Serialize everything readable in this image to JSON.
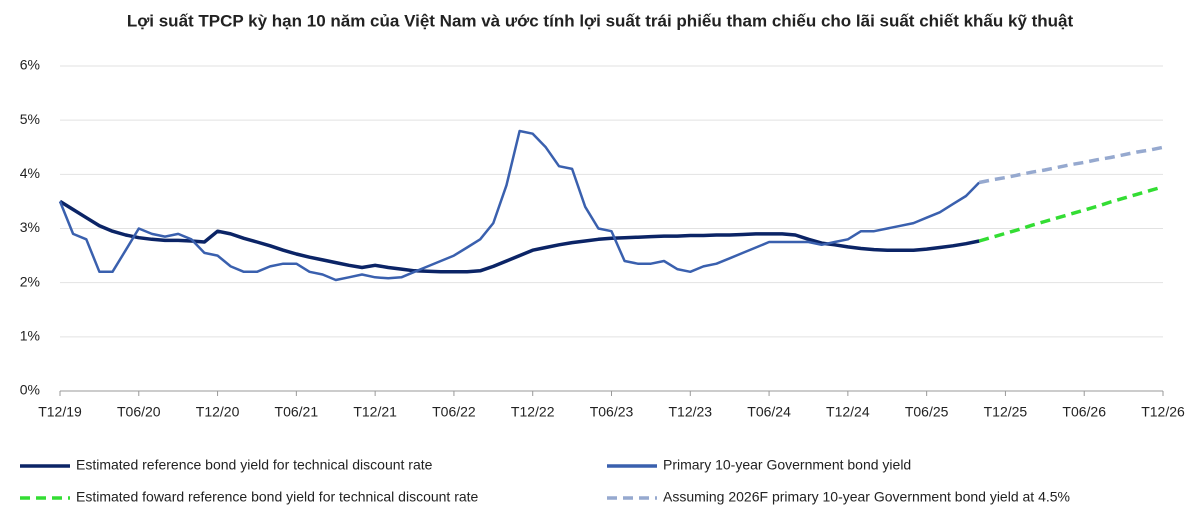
{
  "chart_data": {
    "type": "line",
    "title": "Lợi suất TPCP kỳ hạn 10 năm của Việt Nam và ước tính lợi suất trái phiếu tham chiếu cho lãi suất chiết khấu kỹ thuật",
    "categories": [
      "T12/19",
      null,
      null,
      null,
      null,
      null,
      "T06/20",
      null,
      null,
      null,
      null,
      null,
      "T12/20",
      null,
      null,
      null,
      null,
      null,
      "T06/21",
      null,
      null,
      null,
      null,
      null,
      "T12/21",
      null,
      null,
      null,
      null,
      null,
      "T06/22",
      null,
      null,
      null,
      null,
      null,
      "T12/22",
      null,
      null,
      null,
      null,
      null,
      "T06/23",
      null,
      null,
      null,
      null,
      null,
      "T12/23",
      null,
      null,
      null,
      null,
      null,
      "T06/24",
      null,
      null,
      null,
      null,
      null,
      "T12/24",
      null,
      null,
      null,
      null,
      null,
      "T06/25",
      null,
      null,
      null,
      null,
      null,
      "T12/25",
      null,
      null,
      null,
      null,
      null,
      "T06/26",
      null,
      null,
      null,
      null,
      null,
      "T12/26"
    ],
    "series": [
      {
        "name": "Estimated reference bond yield for technical discount rate",
        "color": "#0b2466",
        "dash": false,
        "values": [
          3.5,
          3.35,
          3.2,
          3.05,
          2.95,
          2.88,
          2.83,
          2.8,
          2.78,
          2.78,
          2.77,
          2.75,
          2.95,
          2.9,
          2.82,
          2.75,
          2.68,
          2.6,
          2.53,
          2.47,
          2.42,
          2.37,
          2.32,
          2.28,
          2.32,
          2.28,
          2.25,
          2.22,
          2.21,
          2.2,
          2.2,
          2.2,
          2.22,
          2.3,
          2.4,
          2.5,
          2.6,
          2.65,
          2.7,
          2.74,
          2.77,
          2.8,
          2.82,
          2.83,
          2.84,
          2.85,
          2.86,
          2.86,
          2.87,
          2.87,
          2.88,
          2.88,
          2.89,
          2.9,
          2.9,
          2.9,
          2.88,
          2.8,
          2.73,
          2.7,
          2.66,
          2.63,
          2.61,
          2.6,
          2.6,
          2.6,
          2.62,
          2.65,
          2.68,
          2.72,
          2.77,
          null,
          null,
          null,
          null,
          null,
          null,
          null,
          null,
          null,
          null,
          null,
          null,
          null,
          null
        ]
      },
      {
        "name": "Primary 10-year Government bond yield",
        "color": "#3a60ae",
        "dash": false,
        "values": [
          3.5,
          2.9,
          2.8,
          2.2,
          2.2,
          2.6,
          3.0,
          2.9,
          2.85,
          2.9,
          2.8,
          2.55,
          2.5,
          2.3,
          2.2,
          2.2,
          2.3,
          2.35,
          2.35,
          2.2,
          2.15,
          2.05,
          2.1,
          2.15,
          2.1,
          2.08,
          2.1,
          2.2,
          2.3,
          2.4,
          2.5,
          2.65,
          2.8,
          3.1,
          3.8,
          4.8,
          4.75,
          4.5,
          4.15,
          4.1,
          3.4,
          3.0,
          2.95,
          2.4,
          2.35,
          2.35,
          2.4,
          2.25,
          2.2,
          2.3,
          2.35,
          2.45,
          2.55,
          2.65,
          2.75,
          2.75,
          2.75,
          2.75,
          2.7,
          2.75,
          2.8,
          2.95,
          2.95,
          3.0,
          3.05,
          3.1,
          3.2,
          3.3,
          3.45,
          3.6,
          3.85,
          null,
          null,
          null,
          null,
          null,
          null,
          null,
          null,
          null,
          null,
          null,
          null,
          null,
          null
        ]
      },
      {
        "name": "Estimated foward reference bond yield for technical discount rate",
        "color": "#33dd33",
        "dash": true,
        "values": [
          null,
          null,
          null,
          null,
          null,
          null,
          null,
          null,
          null,
          null,
          null,
          null,
          null,
          null,
          null,
          null,
          null,
          null,
          null,
          null,
          null,
          null,
          null,
          null,
          null,
          null,
          null,
          null,
          null,
          null,
          null,
          null,
          null,
          null,
          null,
          null,
          null,
          null,
          null,
          null,
          null,
          null,
          null,
          null,
          null,
          null,
          null,
          null,
          null,
          null,
          null,
          null,
          null,
          null,
          null,
          null,
          null,
          null,
          null,
          null,
          null,
          null,
          null,
          null,
          null,
          null,
          null,
          null,
          null,
          null,
          2.77,
          2.84,
          2.91,
          2.98,
          3.06,
          3.13,
          3.2,
          3.27,
          3.34,
          3.41,
          3.49,
          3.56,
          3.63,
          3.7,
          3.77
        ]
      },
      {
        "name": "Assuming 2026F primary 10-year Government bond yield at 4.5%",
        "color": "#96a9cf",
        "dash": true,
        "values": [
          null,
          null,
          null,
          null,
          null,
          null,
          null,
          null,
          null,
          null,
          null,
          null,
          null,
          null,
          null,
          null,
          null,
          null,
          null,
          null,
          null,
          null,
          null,
          null,
          null,
          null,
          null,
          null,
          null,
          null,
          null,
          null,
          null,
          null,
          null,
          null,
          null,
          null,
          null,
          null,
          null,
          null,
          null,
          null,
          null,
          null,
          null,
          null,
          null,
          null,
          null,
          null,
          null,
          null,
          null,
          null,
          null,
          null,
          null,
          null,
          null,
          null,
          null,
          null,
          null,
          null,
          null,
          null,
          null,
          null,
          3.85,
          3.9,
          3.94,
          3.99,
          4.04,
          4.08,
          4.13,
          4.18,
          4.22,
          4.27,
          4.31,
          4.36,
          4.41,
          4.45,
          4.5
        ]
      }
    ],
    "ylim": [
      0,
      6
    ],
    "yticks": [
      {
        "value": 0,
        "label": "0%"
      },
      {
        "value": 1,
        "label": "1%"
      },
      {
        "value": 2,
        "label": "2%"
      },
      {
        "value": 3,
        "label": "3%"
      },
      {
        "value": 4,
        "label": "4%"
      },
      {
        "value": 5,
        "label": "5%"
      },
      {
        "value": 6,
        "label": "6%"
      }
    ],
    "grid": true,
    "legend": "bottom"
  }
}
